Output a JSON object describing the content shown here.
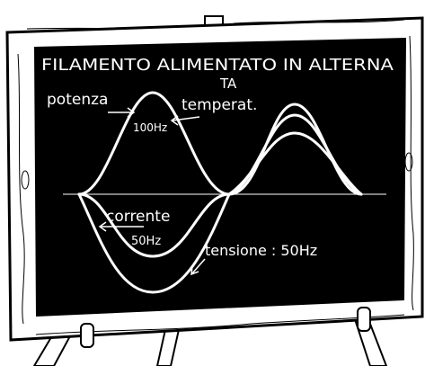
{
  "board": {
    "title": "FILAMENTO ALIMENTATO IN ALTERNA",
    "title_wrap": "TA",
    "labels": {
      "power": "potenza",
      "temperature": "temperat.",
      "power_freq": "100Hz",
      "current": "corrente",
      "current_freq": "50Hz",
      "voltage": "tensione : 50Hz"
    }
  }
}
